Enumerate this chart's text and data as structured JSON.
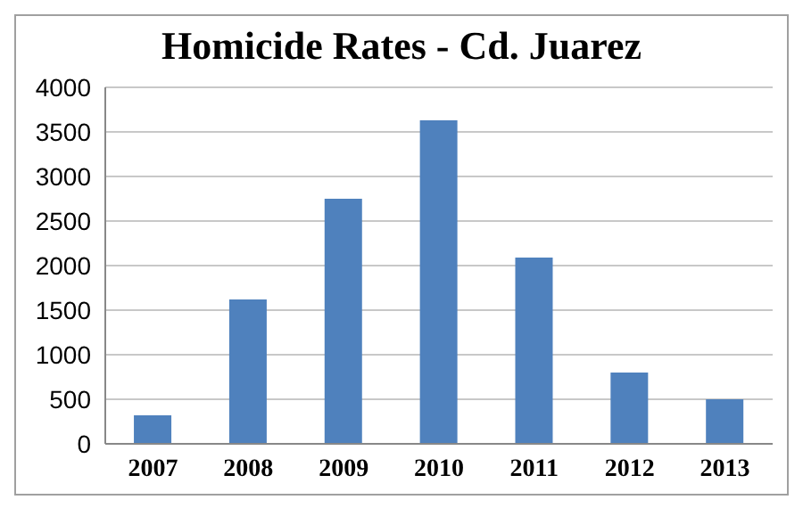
{
  "chart_data": {
    "type": "bar",
    "title": "Homicide Rates - Cd. Juarez",
    "categories": [
      "2007",
      "2008",
      "2009",
      "2010",
      "2011",
      "2012",
      "2013"
    ],
    "values": [
      320,
      1620,
      2750,
      3630,
      2090,
      800,
      500
    ],
    "color": "#4f81bd",
    "ylim": [
      0,
      4000
    ],
    "yticks": [
      0,
      500,
      1000,
      1500,
      2000,
      2500,
      3000,
      3500,
      4000
    ],
    "grid": "y"
  }
}
